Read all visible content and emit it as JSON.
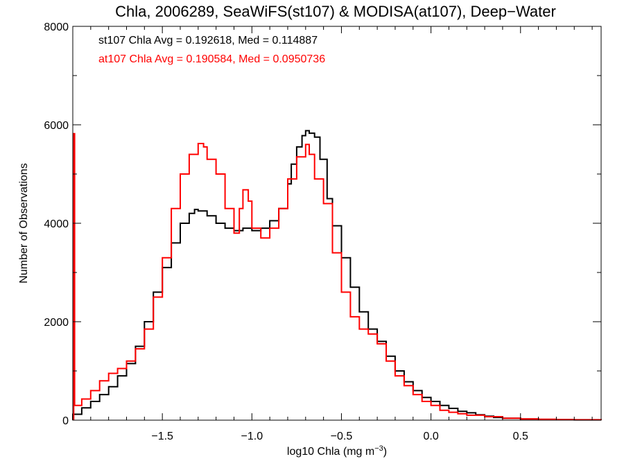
{
  "chart_data": {
    "type": "line",
    "title": "Chla, 2006289, SeaWiFS(st107) & MODISA(at107), Deep−Water",
    "xlabel": "log10 Chla (mg m",
    "xlabel_sup": "−3",
    "xlabel_close": ")",
    "ylabel": "Number of Observations",
    "xlim": [
      -2.0,
      0.95
    ],
    "ylim": [
      0,
      8000
    ],
    "x_ticks": [
      -1.5,
      -1.0,
      -0.5,
      0.0,
      0.5
    ],
    "x_tick_labels": [
      "−1.5",
      "−1.0",
      "−0.5",
      "0.0",
      "0.5"
    ],
    "y_ticks": [
      0,
      2000,
      4000,
      6000,
      8000
    ],
    "y_tick_labels": [
      "0",
      "2000",
      "4000",
      "6000",
      "8000"
    ],
    "annotations": [
      {
        "text": "st107 Chla Avg = 0.192618, Med = 0.114887",
        "color": "#000000"
      },
      {
        "text": "at107 Chla Avg = 0.190584, Med = 0.0950736",
        "color": "#ff0000"
      }
    ],
    "series": [
      {
        "color": "#000000",
        "points": [
          [
            -2.0,
            120
          ],
          [
            -1.95,
            250
          ],
          [
            -1.9,
            380
          ],
          [
            -1.85,
            520
          ],
          [
            -1.8,
            680
          ],
          [
            -1.75,
            900
          ],
          [
            -1.7,
            1150
          ],
          [
            -1.65,
            1500
          ],
          [
            -1.6,
            2000
          ],
          [
            -1.55,
            2600
          ],
          [
            -1.5,
            3100
          ],
          [
            -1.45,
            3600
          ],
          [
            -1.4,
            4000
          ],
          [
            -1.35,
            4200
          ],
          [
            -1.32,
            4280
          ],
          [
            -1.3,
            4250
          ],
          [
            -1.25,
            4150
          ],
          [
            -1.2,
            4000
          ],
          [
            -1.15,
            3900
          ],
          [
            -1.1,
            3850
          ],
          [
            -1.05,
            3900
          ],
          [
            -1.0,
            3850
          ],
          [
            -0.95,
            3900
          ],
          [
            -0.9,
            4050
          ],
          [
            -0.85,
            4300
          ],
          [
            -0.8,
            4800
          ],
          [
            -0.78,
            5200
          ],
          [
            -0.75,
            5550
          ],
          [
            -0.72,
            5780
          ],
          [
            -0.7,
            5880
          ],
          [
            -0.68,
            5830
          ],
          [
            -0.65,
            5750
          ],
          [
            -0.62,
            5300
          ],
          [
            -0.58,
            4500
          ],
          [
            -0.55,
            3950
          ],
          [
            -0.5,
            3300
          ],
          [
            -0.45,
            2700
          ],
          [
            -0.4,
            2200
          ],
          [
            -0.35,
            1850
          ],
          [
            -0.3,
            1600
          ],
          [
            -0.25,
            1300
          ],
          [
            -0.2,
            1000
          ],
          [
            -0.15,
            780
          ],
          [
            -0.1,
            600
          ],
          [
            -0.05,
            460
          ],
          [
            0.0,
            380
          ],
          [
            0.05,
            300
          ],
          [
            0.1,
            240
          ],
          [
            0.15,
            180
          ],
          [
            0.2,
            150
          ],
          [
            0.25,
            110
          ],
          [
            0.3,
            80
          ],
          [
            0.35,
            55
          ],
          [
            0.4,
            40
          ],
          [
            0.5,
            25
          ],
          [
            0.6,
            15
          ],
          [
            0.7,
            10
          ],
          [
            0.8,
            5
          ],
          [
            0.95,
            3
          ]
        ]
      },
      {
        "color": "#ff0000",
        "points": [
          [
            -1.995,
            5820
          ],
          [
            -1.99,
            300
          ],
          [
            -1.95,
            430
          ],
          [
            -1.9,
            600
          ],
          [
            -1.85,
            800
          ],
          [
            -1.8,
            950
          ],
          [
            -1.75,
            1050
          ],
          [
            -1.7,
            1200
          ],
          [
            -1.65,
            1450
          ],
          [
            -1.6,
            1850
          ],
          [
            -1.55,
            2500
          ],
          [
            -1.5,
            3300
          ],
          [
            -1.45,
            4300
          ],
          [
            -1.4,
            5000
          ],
          [
            -1.35,
            5400
          ],
          [
            -1.3,
            5620
          ],
          [
            -1.27,
            5550
          ],
          [
            -1.25,
            5300
          ],
          [
            -1.2,
            5000
          ],
          [
            -1.15,
            4300
          ],
          [
            -1.1,
            3800
          ],
          [
            -1.07,
            4300
          ],
          [
            -1.05,
            4680
          ],
          [
            -1.02,
            4450
          ],
          [
            -1.0,
            3900
          ],
          [
            -0.95,
            3700
          ],
          [
            -0.9,
            3900
          ],
          [
            -0.85,
            4300
          ],
          [
            -0.8,
            4900
          ],
          [
            -0.75,
            5350
          ],
          [
            -0.7,
            5600
          ],
          [
            -0.68,
            5400
          ],
          [
            -0.65,
            4900
          ],
          [
            -0.6,
            4400
          ],
          [
            -0.55,
            3400
          ],
          [
            -0.5,
            2600
          ],
          [
            -0.45,
            2100
          ],
          [
            -0.4,
            1850
          ],
          [
            -0.35,
            1750
          ],
          [
            -0.3,
            1550
          ],
          [
            -0.25,
            1200
          ],
          [
            -0.2,
            900
          ],
          [
            -0.15,
            700
          ],
          [
            -0.1,
            520
          ],
          [
            -0.05,
            380
          ],
          [
            0.0,
            300
          ],
          [
            0.05,
            200
          ],
          [
            0.1,
            160
          ],
          [
            0.15,
            130
          ],
          [
            0.2,
            100
          ],
          [
            0.3,
            70
          ],
          [
            0.4,
            40
          ],
          [
            0.5,
            25
          ],
          [
            0.6,
            18
          ],
          [
            0.7,
            12
          ],
          [
            0.8,
            8
          ],
          [
            0.95,
            5
          ]
        ]
      }
    ]
  }
}
